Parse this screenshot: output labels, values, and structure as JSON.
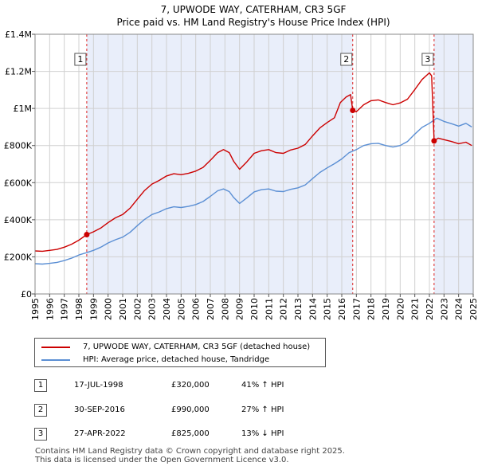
{
  "chart_data": {
    "type": "line",
    "title": "7, UPWODE WAY, CATERHAM, CR3 5GF",
    "subtitle": "Price paid vs. HM Land Registry's House Price Index (HPI)",
    "x_range": [
      1995,
      2025
    ],
    "x_ticks": [
      "1995",
      "1996",
      "1997",
      "1998",
      "1999",
      "2000",
      "2001",
      "2002",
      "2003",
      "2004",
      "2005",
      "2006",
      "2007",
      "2008",
      "2009",
      "2010",
      "2011",
      "2012",
      "2013",
      "2014",
      "2015",
      "2016",
      "2017",
      "2018",
      "2019",
      "2020",
      "2021",
      "2022",
      "2023",
      "2024",
      "2025"
    ],
    "y_range": [
      0,
      1400000
    ],
    "y_ticks": [
      {
        "value": 0,
        "label": "£0"
      },
      {
        "value": 200000,
        "label": "£200K"
      },
      {
        "value": 400000,
        "label": "£400K"
      },
      {
        "value": 600000,
        "label": "£600K"
      },
      {
        "value": 800000,
        "label": "£800K"
      },
      {
        "value": 1000000,
        "label": "£1M"
      },
      {
        "value": 1200000,
        "label": "£1.2M"
      },
      {
        "value": 1400000,
        "label": "£1.4M"
      }
    ],
    "grid": true,
    "series": [
      {
        "name": "7, UPWODE WAY, CATERHAM, CR3 5GF (detached house)",
        "color": "#cc0000",
        "points": [
          [
            1995.0,
            232000
          ],
          [
            1995.5,
            230000
          ],
          [
            1996.0,
            235000
          ],
          [
            1996.5,
            240000
          ],
          [
            1997.0,
            252000
          ],
          [
            1997.5,
            268000
          ],
          [
            1998.0,
            290000
          ],
          [
            1998.54,
            320000
          ],
          [
            1999.0,
            335000
          ],
          [
            1999.5,
            355000
          ],
          [
            2000.0,
            385000
          ],
          [
            2000.5,
            410000
          ],
          [
            2001.0,
            428000
          ],
          [
            2001.5,
            462000
          ],
          [
            2002.0,
            510000
          ],
          [
            2002.5,
            558000
          ],
          [
            2003.0,
            592000
          ],
          [
            2003.5,
            612000
          ],
          [
            2004.0,
            636000
          ],
          [
            2004.5,
            648000
          ],
          [
            2005.0,
            643000
          ],
          [
            2005.5,
            650000
          ],
          [
            2006.0,
            662000
          ],
          [
            2006.5,
            682000
          ],
          [
            2007.0,
            720000
          ],
          [
            2007.5,
            762000
          ],
          [
            2007.9,
            778000
          ],
          [
            2008.3,
            762000
          ],
          [
            2008.6,
            715000
          ],
          [
            2009.0,
            672000
          ],
          [
            2009.5,
            712000
          ],
          [
            2010.0,
            758000
          ],
          [
            2010.5,
            772000
          ],
          [
            2011.0,
            778000
          ],
          [
            2011.5,
            762000
          ],
          [
            2012.0,
            758000
          ],
          [
            2012.5,
            776000
          ],
          [
            2013.0,
            786000
          ],
          [
            2013.5,
            806000
          ],
          [
            2014.0,
            852000
          ],
          [
            2014.5,
            895000
          ],
          [
            2015.0,
            924000
          ],
          [
            2015.5,
            950000
          ],
          [
            2015.9,
            1032000
          ],
          [
            2016.3,
            1062000
          ],
          [
            2016.6,
            1075000
          ],
          [
            2016.75,
            990000
          ],
          [
            2017.0,
            982000
          ],
          [
            2017.5,
            1020000
          ],
          [
            2018.0,
            1042000
          ],
          [
            2018.5,
            1046000
          ],
          [
            2019.0,
            1032000
          ],
          [
            2019.5,
            1020000
          ],
          [
            2020.0,
            1030000
          ],
          [
            2020.5,
            1050000
          ],
          [
            2021.0,
            1102000
          ],
          [
            2021.5,
            1156000
          ],
          [
            2022.0,
            1192000
          ],
          [
            2022.15,
            1176000
          ],
          [
            2022.32,
            825000
          ],
          [
            2022.6,
            840000
          ],
          [
            2023.0,
            832000
          ],
          [
            2023.5,
            822000
          ],
          [
            2024.0,
            810000
          ],
          [
            2024.5,
            818000
          ],
          [
            2024.9,
            800000
          ]
        ]
      },
      {
        "name": "HPI: Average price, detached house, Tandridge",
        "color": "#5b8fd4",
        "points": [
          [
            1995.0,
            163000
          ],
          [
            1995.5,
            161000
          ],
          [
            1996.0,
            165000
          ],
          [
            1996.5,
            170000
          ],
          [
            1997.0,
            180000
          ],
          [
            1997.5,
            193000
          ],
          [
            1998.0,
            210000
          ],
          [
            1998.5,
            222000
          ],
          [
            1999.0,
            235000
          ],
          [
            1999.5,
            252000
          ],
          [
            2000.0,
            275000
          ],
          [
            2000.5,
            292000
          ],
          [
            2001.0,
            306000
          ],
          [
            2001.5,
            332000
          ],
          [
            2002.0,
            368000
          ],
          [
            2002.5,
            402000
          ],
          [
            2003.0,
            428000
          ],
          [
            2003.5,
            442000
          ],
          [
            2004.0,
            460000
          ],
          [
            2004.5,
            470000
          ],
          [
            2005.0,
            466000
          ],
          [
            2005.5,
            472000
          ],
          [
            2006.0,
            482000
          ],
          [
            2006.5,
            498000
          ],
          [
            2007.0,
            526000
          ],
          [
            2007.5,
            556000
          ],
          [
            2007.9,
            566000
          ],
          [
            2008.3,
            552000
          ],
          [
            2008.6,
            520000
          ],
          [
            2009.0,
            488000
          ],
          [
            2009.5,
            518000
          ],
          [
            2010.0,
            550000
          ],
          [
            2010.5,
            562000
          ],
          [
            2011.0,
            566000
          ],
          [
            2011.5,
            554000
          ],
          [
            2012.0,
            552000
          ],
          [
            2012.5,
            564000
          ],
          [
            2013.0,
            572000
          ],
          [
            2013.5,
            588000
          ],
          [
            2014.0,
            622000
          ],
          [
            2014.5,
            655000
          ],
          [
            2015.0,
            680000
          ],
          [
            2015.5,
            702000
          ],
          [
            2016.0,
            728000
          ],
          [
            2016.5,
            762000
          ],
          [
            2017.0,
            778000
          ],
          [
            2017.5,
            800000
          ],
          [
            2018.0,
            810000
          ],
          [
            2018.5,
            812000
          ],
          [
            2019.0,
            800000
          ],
          [
            2019.5,
            792000
          ],
          [
            2020.0,
            800000
          ],
          [
            2020.5,
            822000
          ],
          [
            2021.0,
            862000
          ],
          [
            2021.5,
            898000
          ],
          [
            2022.0,
            920000
          ],
          [
            2022.5,
            948000
          ],
          [
            2023.0,
            930000
          ],
          [
            2023.5,
            918000
          ],
          [
            2024.0,
            905000
          ],
          [
            2024.5,
            920000
          ],
          [
            2024.9,
            900000
          ]
        ]
      }
    ],
    "sales": [
      {
        "n": "1",
        "x": 1998.54,
        "value": 320000
      },
      {
        "n": "2",
        "x": 2016.75,
        "value": 990000
      },
      {
        "n": "3",
        "x": 2022.32,
        "value": 825000
      }
    ],
    "shade_color": "#e9eefa",
    "vline_color": "#dd2222"
  },
  "legend": {
    "property_label": "7, UPWODE WAY, CATERHAM, CR3 5GF (detached house)",
    "hpi_label": "HPI: Average price, detached house, Tandridge"
  },
  "transactions": [
    {
      "n": "1",
      "date": "17-JUL-1998",
      "price": "£320,000",
      "hpi": "41% ↑ HPI"
    },
    {
      "n": "2",
      "date": "30-SEP-2016",
      "price": "£990,000",
      "hpi": "27% ↑ HPI"
    },
    {
      "n": "3",
      "date": "27-APR-2022",
      "price": "£825,000",
      "hpi": "13% ↓ HPI"
    }
  ],
  "footer": {
    "line1": "Contains HM Land Registry data © Crown copyright and database right 2025.",
    "line2": "This data is licensed under the Open Government Licence v3.0."
  }
}
